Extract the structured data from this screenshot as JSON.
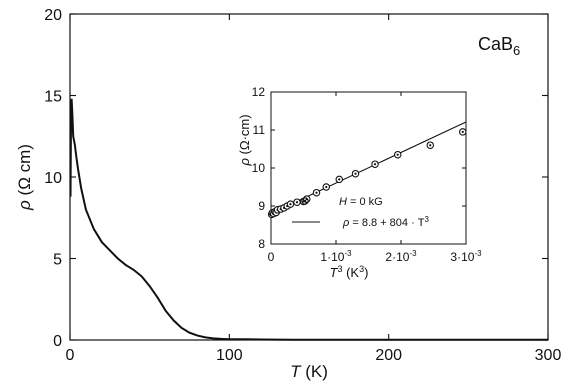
{
  "chart_data": [
    {
      "type": "line",
      "annotation": "CaB",
      "annotation_sub": "6",
      "xlabel": "T",
      "xunit": " (K)",
      "ylabel": "ρ",
      "yunit": " (Ω cm)",
      "xlim": [
        0,
        300
      ],
      "ylim": [
        0,
        20
      ],
      "xticks": [
        0,
        100,
        200,
        300
      ],
      "yticks": [
        0,
        5,
        10,
        15,
        20
      ],
      "xtick_labels": [
        "0",
        "100",
        "200",
        "300"
      ],
      "ytick_labels": [
        "0",
        "5",
        "10",
        "15",
        "20"
      ],
      "series": [
        {
          "x": [
            0.3,
            0.6,
            1.0,
            1.5,
            2,
            3,
            4,
            5,
            7,
            10,
            15,
            20,
            25,
            30,
            35,
            40,
            45,
            50,
            55,
            60,
            65,
            70,
            75,
            80,
            85,
            90,
            95,
            100,
            110,
            120,
            140,
            160,
            200,
            250,
            300
          ],
          "y": [
            8.8,
            13.5,
            14.8,
            13.8,
            12.5,
            12.0,
            11.2,
            10.5,
            9.3,
            8.0,
            6.8,
            6.0,
            5.5,
            5.0,
            4.6,
            4.3,
            3.9,
            3.3,
            2.6,
            1.8,
            1.2,
            0.75,
            0.45,
            0.27,
            0.16,
            0.1,
            0.07,
            0.05,
            0.04,
            0.03,
            0.02,
            0.02,
            0.01,
            0.01,
            0.01
          ]
        }
      ]
    },
    {
      "type": "scatter",
      "xlabel": "T",
      "xlabel_sup": "3",
      "xunit_pre": " (K",
      "xunit_sup": "3",
      "xunit_post": ")",
      "ylabel": "ρ",
      "yunit": " (Ω·cm)",
      "xlim": [
        0,
        0.003
      ],
      "ylim": [
        8,
        12
      ],
      "xticks": [
        0,
        0.001,
        0.002,
        0.003
      ],
      "yticks": [
        8,
        9,
        10,
        11,
        12
      ],
      "xtick_labels": [
        {
          "base": "0",
          "exp": ""
        },
        {
          "base": "1·10",
          "exp": "-3"
        },
        {
          "base": "2·10",
          "exp": "-3"
        },
        {
          "base": "3·10",
          "exp": "-3"
        }
      ],
      "ytick_labels": [
        "8",
        "9",
        "10",
        "11",
        "12"
      ],
      "series": [
        {
          "name_pre": "H",
          "name_post": " = 0 kG",
          "x": [
            1e-05,
            2e-05,
            4e-05,
            6e-05,
            8e-05,
            0.0001,
            0.00015,
            0.0002,
            0.00025,
            0.0003,
            0.0004,
            0.0005,
            0.00055,
            0.0007,
            0.00085,
            0.00105,
            0.0013,
            0.0016,
            0.00195,
            0.00245,
            0.00295
          ],
          "y": [
            8.78,
            8.82,
            8.8,
            8.85,
            8.83,
            8.9,
            8.92,
            8.95,
            9.0,
            9.05,
            9.1,
            9.12,
            9.18,
            9.35,
            9.5,
            9.7,
            9.85,
            10.1,
            10.35,
            10.6,
            10.95
          ]
        }
      ],
      "fit": {
        "label_pre": "ρ",
        "label_mid": " = 8.8 + 804 · T",
        "label_sup": "3",
        "intercept": 8.8,
        "slope": 804
      }
    }
  ]
}
